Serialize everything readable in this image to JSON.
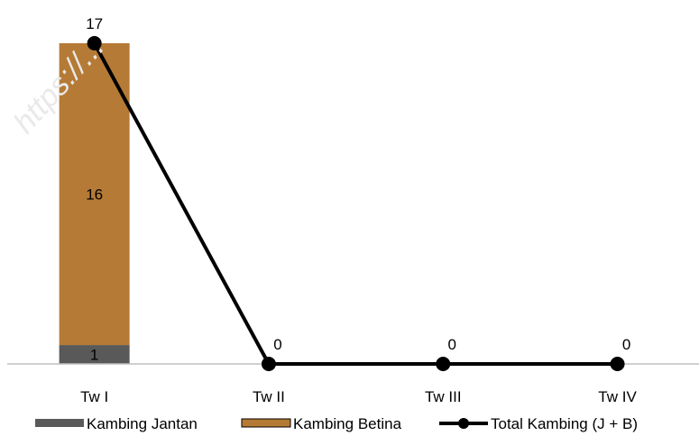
{
  "chart_data": {
    "type": "bar",
    "stacked": true,
    "categories": [
      "Tw I",
      "Tw II",
      "Tw III",
      "Tw IV"
    ],
    "series": [
      {
        "name": "Kambing Jantan",
        "type": "bar",
        "values": [
          1,
          0,
          0,
          0
        ],
        "color": "#595959"
      },
      {
        "name": "Kambing Betina",
        "type": "bar",
        "values": [
          16,
          0,
          0,
          0
        ],
        "color": "#B57A35"
      },
      {
        "name": "Total Kambing (J + B)",
        "type": "line",
        "values": [
          17,
          0,
          0,
          0
        ],
        "color": "#000000"
      }
    ],
    "bar_labels": {
      "Kambing Jantan": [
        "1",
        "",
        "",
        ""
      ],
      "Kambing Betina": [
        "16",
        "",
        "",
        ""
      ]
    },
    "line_labels": [
      "17",
      "0",
      "0",
      "0"
    ],
    "ylim": [
      0,
      17
    ],
    "grid": false,
    "legend_position": "bottom",
    "title": "",
    "xlabel": "",
    "ylabel": ""
  },
  "watermark": {
    "text": "https://..."
  }
}
